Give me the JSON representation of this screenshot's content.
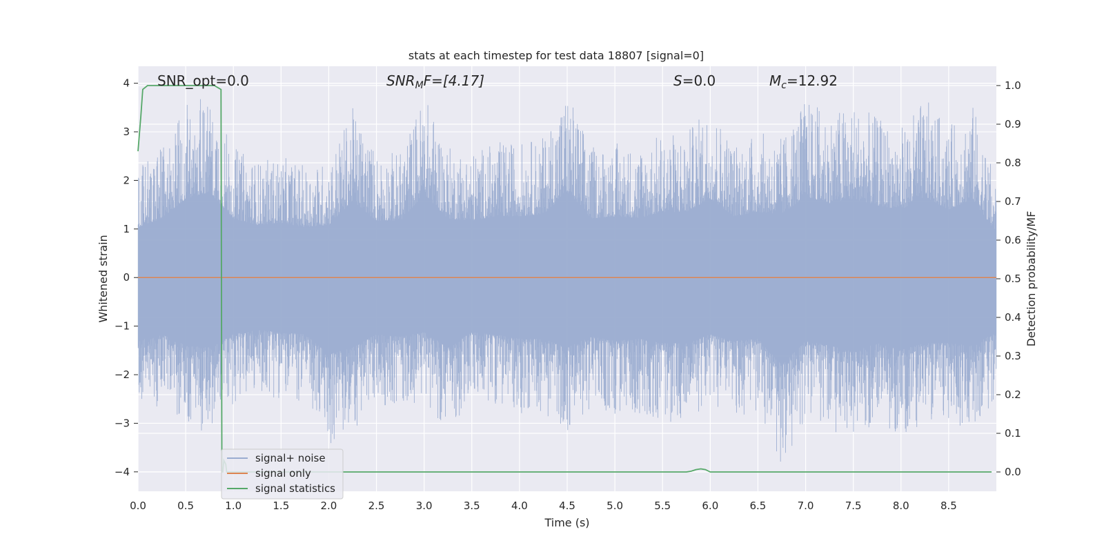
{
  "chart_data": {
    "type": "line",
    "title": "stats at each timestep for test data 18807 [signal=0]",
    "xlabel": "Time (s)",
    "ylabel": "Whitened strain",
    "y2label": "Detection probability/MF",
    "xlim": [
      0,
      9.0
    ],
    "ylim": [
      -4.4,
      4.35
    ],
    "y2lim": [
      -0.05,
      1.05
    ],
    "xticks": [
      "0.0",
      "0.5",
      "1.0",
      "1.5",
      "2.0",
      "2.5",
      "3.0",
      "3.5",
      "4.0",
      "4.5",
      "5.0",
      "5.5",
      "6.0",
      "6.5",
      "7.0",
      "7.5",
      "8.0",
      "8.5"
    ],
    "yticks": [
      "−4",
      "−3",
      "−2",
      "−1",
      "0",
      "1",
      "2",
      "3",
      "4"
    ],
    "y2ticks": [
      "0.0",
      "0.1",
      "0.2",
      "0.3",
      "0.4",
      "0.5",
      "0.6",
      "0.7",
      "0.8",
      "0.9",
      "1.0"
    ],
    "grid": true,
    "legend_position": "lower-left",
    "annotations": {
      "snr_opt": "SNR_opt=0.0",
      "snr_mf_base": "SNR",
      "snr_mf_sub": "M",
      "snr_mf_rest": "F=[4.17]",
      "s_italic": "S",
      "s_rest": "=0.0",
      "mc_base": "M",
      "mc_sub": "c",
      "mc_rest": "=12.92"
    },
    "series": [
      {
        "name": "signal+ noise",
        "color": "#9aacd0",
        "description_values": "dense noise band",
        "envelope_x": [
          0,
          0.25,
          0.5,
          0.75,
          1.0,
          1.25,
          1.5,
          1.75,
          2.0,
          2.25,
          2.5,
          2.75,
          3.0,
          3.25,
          3.5,
          3.75,
          4.0,
          4.25,
          4.5,
          4.75,
          5.0,
          5.25,
          5.5,
          5.75,
          6.0,
          6.25,
          6.5,
          6.75,
          7.0,
          7.25,
          7.5,
          7.75,
          8.0,
          8.25,
          8.5,
          8.75,
          9.0
        ],
        "envelope_upper": [
          2.3,
          2.7,
          3.6,
          3.9,
          2.7,
          2.4,
          2.5,
          2.3,
          2.4,
          3.5,
          2.6,
          2.6,
          3.8,
          2.7,
          2.6,
          2.8,
          2.8,
          2.9,
          3.9,
          2.7,
          2.8,
          2.7,
          3.0,
          3.0,
          3.6,
          2.8,
          3.0,
          2.9,
          3.7,
          3.4,
          3.6,
          3.3,
          3.1,
          3.7,
          3.1,
          3.6,
          2.0
        ],
        "envelope_lower": [
          -2.9,
          -2.6,
          -3.1,
          -3.2,
          -2.6,
          -2.4,
          -2.5,
          -2.6,
          -3.5,
          -3.2,
          -2.6,
          -2.7,
          -2.5,
          -3.2,
          -2.5,
          -2.6,
          -2.8,
          -2.8,
          -3.2,
          -2.7,
          -2.9,
          -2.8,
          -3.0,
          -3.0,
          -2.6,
          -2.9,
          -2.8,
          -4.0,
          -2.9,
          -3.1,
          -3.4,
          -3.0,
          -3.3,
          -3.0,
          -3.0,
          -3.1,
          -2.5
        ]
      },
      {
        "name": "signal only",
        "color": "#dd8452",
        "x": [
          0,
          9.0
        ],
        "y": [
          0,
          0
        ]
      },
      {
        "name": "signal statistics",
        "color": "#55a868",
        "axis": "right",
        "x": [
          0.0,
          0.03,
          0.05,
          0.1,
          0.2,
          0.5,
          0.8,
          0.87,
          0.88,
          0.89,
          0.9,
          0.92,
          0.93,
          0.95,
          1.0,
          2.0,
          3.0,
          4.0,
          5.0,
          5.75,
          5.8,
          5.85,
          5.9,
          5.95,
          6.0,
          6.1,
          7.0,
          8.0,
          8.95
        ],
        "y": [
          0.83,
          0.92,
          0.99,
          1.0,
          1.0,
          1.0,
          1.0,
          0.99,
          0.0,
          0.0,
          0.03,
          0.02,
          0.0,
          0.0,
          0.0,
          0.0,
          0.0,
          0.0,
          0.0,
          0.0,
          0.002,
          0.006,
          0.008,
          0.006,
          0.0,
          0.0,
          0.0,
          0.0,
          0.0
        ]
      }
    ]
  }
}
